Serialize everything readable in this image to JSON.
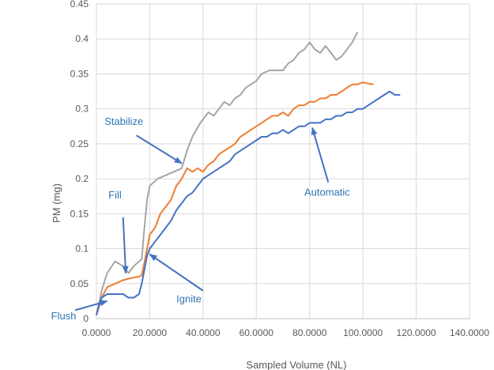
{
  "chart_data": {
    "type": "line",
    "xlabel": "Sampled Volume (NL)",
    "ylabel": "PM (mg)",
    "xlim": [
      0,
      140
    ],
    "ylim": [
      0,
      0.45
    ],
    "x_ticks": [
      "0.0000",
      "20.0000",
      "40.0000",
      "60.0000",
      "80.0000",
      "100.0000",
      "120.0000",
      "140.0000"
    ],
    "y_ticks": [
      "0",
      "0.05",
      "0.1",
      "0.15",
      "0.2",
      "0.25",
      "0.3",
      "0.35",
      "0.4",
      "0.45"
    ],
    "grid": true,
    "series": [
      {
        "color": "#a5a5a5",
        "points": [
          [
            0,
            0.005
          ],
          [
            2,
            0.04
          ],
          [
            4,
            0.065
          ],
          [
            7,
            0.082
          ],
          [
            10,
            0.075
          ],
          [
            12,
            0.065
          ],
          [
            14,
            0.075
          ],
          [
            17,
            0.085
          ],
          [
            18,
            0.13
          ],
          [
            19,
            0.17
          ],
          [
            20,
            0.19
          ],
          [
            23,
            0.2
          ],
          [
            26,
            0.205
          ],
          [
            29,
            0.21
          ],
          [
            32,
            0.215
          ],
          [
            34,
            0.24
          ],
          [
            36,
            0.26
          ],
          [
            39,
            0.28
          ],
          [
            42,
            0.295
          ],
          [
            44,
            0.29
          ],
          [
            46,
            0.3
          ],
          [
            48,
            0.31
          ],
          [
            50,
            0.305
          ],
          [
            52,
            0.315
          ],
          [
            54,
            0.32
          ],
          [
            56,
            0.33
          ],
          [
            58,
            0.335
          ],
          [
            60,
            0.34
          ],
          [
            62,
            0.35
          ],
          [
            65,
            0.355
          ],
          [
            68,
            0.355
          ],
          [
            70,
            0.355
          ],
          [
            72,
            0.365
          ],
          [
            74,
            0.37
          ],
          [
            76,
            0.38
          ],
          [
            78,
            0.385
          ],
          [
            80,
            0.395
          ],
          [
            82,
            0.385
          ],
          [
            84,
            0.38
          ],
          [
            86,
            0.39
          ],
          [
            88,
            0.38
          ],
          [
            90,
            0.37
          ],
          [
            92,
            0.375
          ],
          [
            94,
            0.385
          ],
          [
            96,
            0.395
          ],
          [
            98,
            0.41
          ]
        ]
      },
      {
        "color": "#ed7d31",
        "points": [
          [
            0,
            0.005
          ],
          [
            2,
            0.03
          ],
          [
            4,
            0.045
          ],
          [
            7,
            0.05
          ],
          [
            10,
            0.055
          ],
          [
            13,
            0.058
          ],
          [
            16,
            0.06
          ],
          [
            17,
            0.062
          ],
          [
            18,
            0.08
          ],
          [
            19,
            0.1
          ],
          [
            20,
            0.12
          ],
          [
            22,
            0.13
          ],
          [
            24,
            0.15
          ],
          [
            26,
            0.16
          ],
          [
            28,
            0.17
          ],
          [
            30,
            0.19
          ],
          [
            32,
            0.2
          ],
          [
            34,
            0.215
          ],
          [
            36,
            0.21
          ],
          [
            38,
            0.215
          ],
          [
            40,
            0.21
          ],
          [
            42,
            0.22
          ],
          [
            44,
            0.225
          ],
          [
            46,
            0.235
          ],
          [
            48,
            0.24
          ],
          [
            50,
            0.245
          ],
          [
            52,
            0.25
          ],
          [
            54,
            0.26
          ],
          [
            56,
            0.265
          ],
          [
            58,
            0.27
          ],
          [
            60,
            0.275
          ],
          [
            62,
            0.28
          ],
          [
            64,
            0.285
          ],
          [
            66,
            0.29
          ],
          [
            68,
            0.29
          ],
          [
            70,
            0.295
          ],
          [
            72,
            0.29
          ],
          [
            74,
            0.3
          ],
          [
            76,
            0.305
          ],
          [
            78,
            0.305
          ],
          [
            80,
            0.31
          ],
          [
            82,
            0.31
          ],
          [
            84,
            0.315
          ],
          [
            86,
            0.315
          ],
          [
            88,
            0.32
          ],
          [
            90,
            0.32
          ],
          [
            92,
            0.325
          ],
          [
            94,
            0.33
          ],
          [
            96,
            0.335
          ],
          [
            98,
            0.335
          ],
          [
            100,
            0.338
          ],
          [
            102,
            0.336
          ],
          [
            104,
            0.335
          ]
        ]
      },
      {
        "color": "#4472c4",
        "points": [
          [
            0,
            0.005
          ],
          [
            1,
            0.02
          ],
          [
            2,
            0.03
          ],
          [
            4,
            0.035
          ],
          [
            7,
            0.035
          ],
          [
            10,
            0.035
          ],
          [
            12,
            0.03
          ],
          [
            14,
            0.03
          ],
          [
            16,
            0.035
          ],
          [
            17,
            0.05
          ],
          [
            18,
            0.07
          ],
          [
            19,
            0.09
          ],
          [
            20,
            0.1
          ],
          [
            22,
            0.11
          ],
          [
            24,
            0.12
          ],
          [
            26,
            0.13
          ],
          [
            28,
            0.14
          ],
          [
            30,
            0.155
          ],
          [
            32,
            0.165
          ],
          [
            34,
            0.175
          ],
          [
            36,
            0.18
          ],
          [
            38,
            0.19
          ],
          [
            40,
            0.2
          ],
          [
            42,
            0.205
          ],
          [
            44,
            0.21
          ],
          [
            46,
            0.215
          ],
          [
            48,
            0.22
          ],
          [
            50,
            0.225
          ],
          [
            52,
            0.235
          ],
          [
            54,
            0.24
          ],
          [
            56,
            0.245
          ],
          [
            58,
            0.25
          ],
          [
            60,
            0.255
          ],
          [
            62,
            0.26
          ],
          [
            64,
            0.26
          ],
          [
            66,
            0.265
          ],
          [
            68,
            0.265
          ],
          [
            70,
            0.27
          ],
          [
            72,
            0.265
          ],
          [
            74,
            0.27
          ],
          [
            76,
            0.275
          ],
          [
            78,
            0.275
          ],
          [
            80,
            0.28
          ],
          [
            82,
            0.28
          ],
          [
            84,
            0.28
          ],
          [
            86,
            0.285
          ],
          [
            88,
            0.285
          ],
          [
            90,
            0.29
          ],
          [
            92,
            0.29
          ],
          [
            94,
            0.295
          ],
          [
            96,
            0.295
          ],
          [
            98,
            0.3
          ],
          [
            100,
            0.3
          ],
          [
            102,
            0.305
          ],
          [
            104,
            0.31
          ],
          [
            106,
            0.315
          ],
          [
            108,
            0.32
          ],
          [
            110,
            0.325
          ],
          [
            112,
            0.32
          ],
          [
            114,
            0.32
          ]
        ]
      }
    ],
    "annotations": [
      {
        "text": "Stabilize",
        "label_x": 3,
        "label_y": 0.277,
        "arrow_from": [
          15,
          0.262
        ],
        "arrow_to": [
          32,
          0.222
        ]
      },
      {
        "text": "Fill",
        "label_x": 4.5,
        "label_y": 0.172,
        "arrow_from": [
          10,
          0.145
        ],
        "arrow_to": [
          11,
          0.065
        ]
      },
      {
        "text": "Flush",
        "label_x": -17,
        "label_y": -0.001,
        "arrow_from": [
          -8,
          0.012
        ],
        "arrow_to": [
          4,
          0.025
        ]
      },
      {
        "text": "Ignite",
        "label_x": 30,
        "label_y": 0.023,
        "arrow_from": [
          40,
          0.04
        ],
        "arrow_to": [
          20,
          0.092
        ]
      },
      {
        "text": "Automatic",
        "label_x": 78,
        "label_y": 0.176,
        "arrow_from": [
          87,
          0.195
        ],
        "arrow_to": [
          81,
          0.273
        ]
      }
    ],
    "annotation_color": "#4472c4"
  }
}
